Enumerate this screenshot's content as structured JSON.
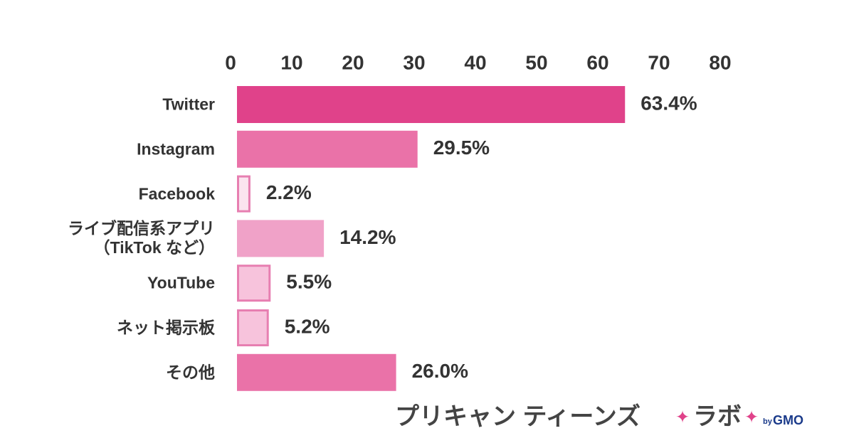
{
  "chart_data": {
    "type": "bar",
    "orientation": "horizontal",
    "categories": [
      "Twitter",
      "Instagram",
      "Facebook",
      "ライブ配信系アプリ\n（TikTok など）",
      "YouTube",
      "ネット掲示板",
      "その他"
    ],
    "values": [
      63.4,
      29.5,
      2.2,
      14.2,
      5.5,
      5.2,
      26.0
    ],
    "value_labels": [
      "63.4%",
      "29.5%",
      "2.2%",
      "14.2%",
      "5.5%",
      "5.2%",
      "26.0%"
    ],
    "colors": [
      "#e0428a",
      "#ea72a8",
      "#fbe4ef",
      "#f0a2c8",
      "#f7c3dc",
      "#f7c3dc",
      "#ea72a8"
    ],
    "border_colors": [
      "#e0428a",
      "#ea72a8",
      "#e77fb1",
      "#f0a2c8",
      "#e77fb1",
      "#e77fb1",
      "#ea72a8"
    ],
    "xlim": [
      0,
      80
    ],
    "xticks": [
      0,
      10,
      20,
      30,
      40,
      50,
      60,
      70,
      80
    ]
  },
  "brand": {
    "name": "プリキャン ティーンズ",
    "sub": "ラボ",
    "by": "by",
    "company": "GMO"
  }
}
